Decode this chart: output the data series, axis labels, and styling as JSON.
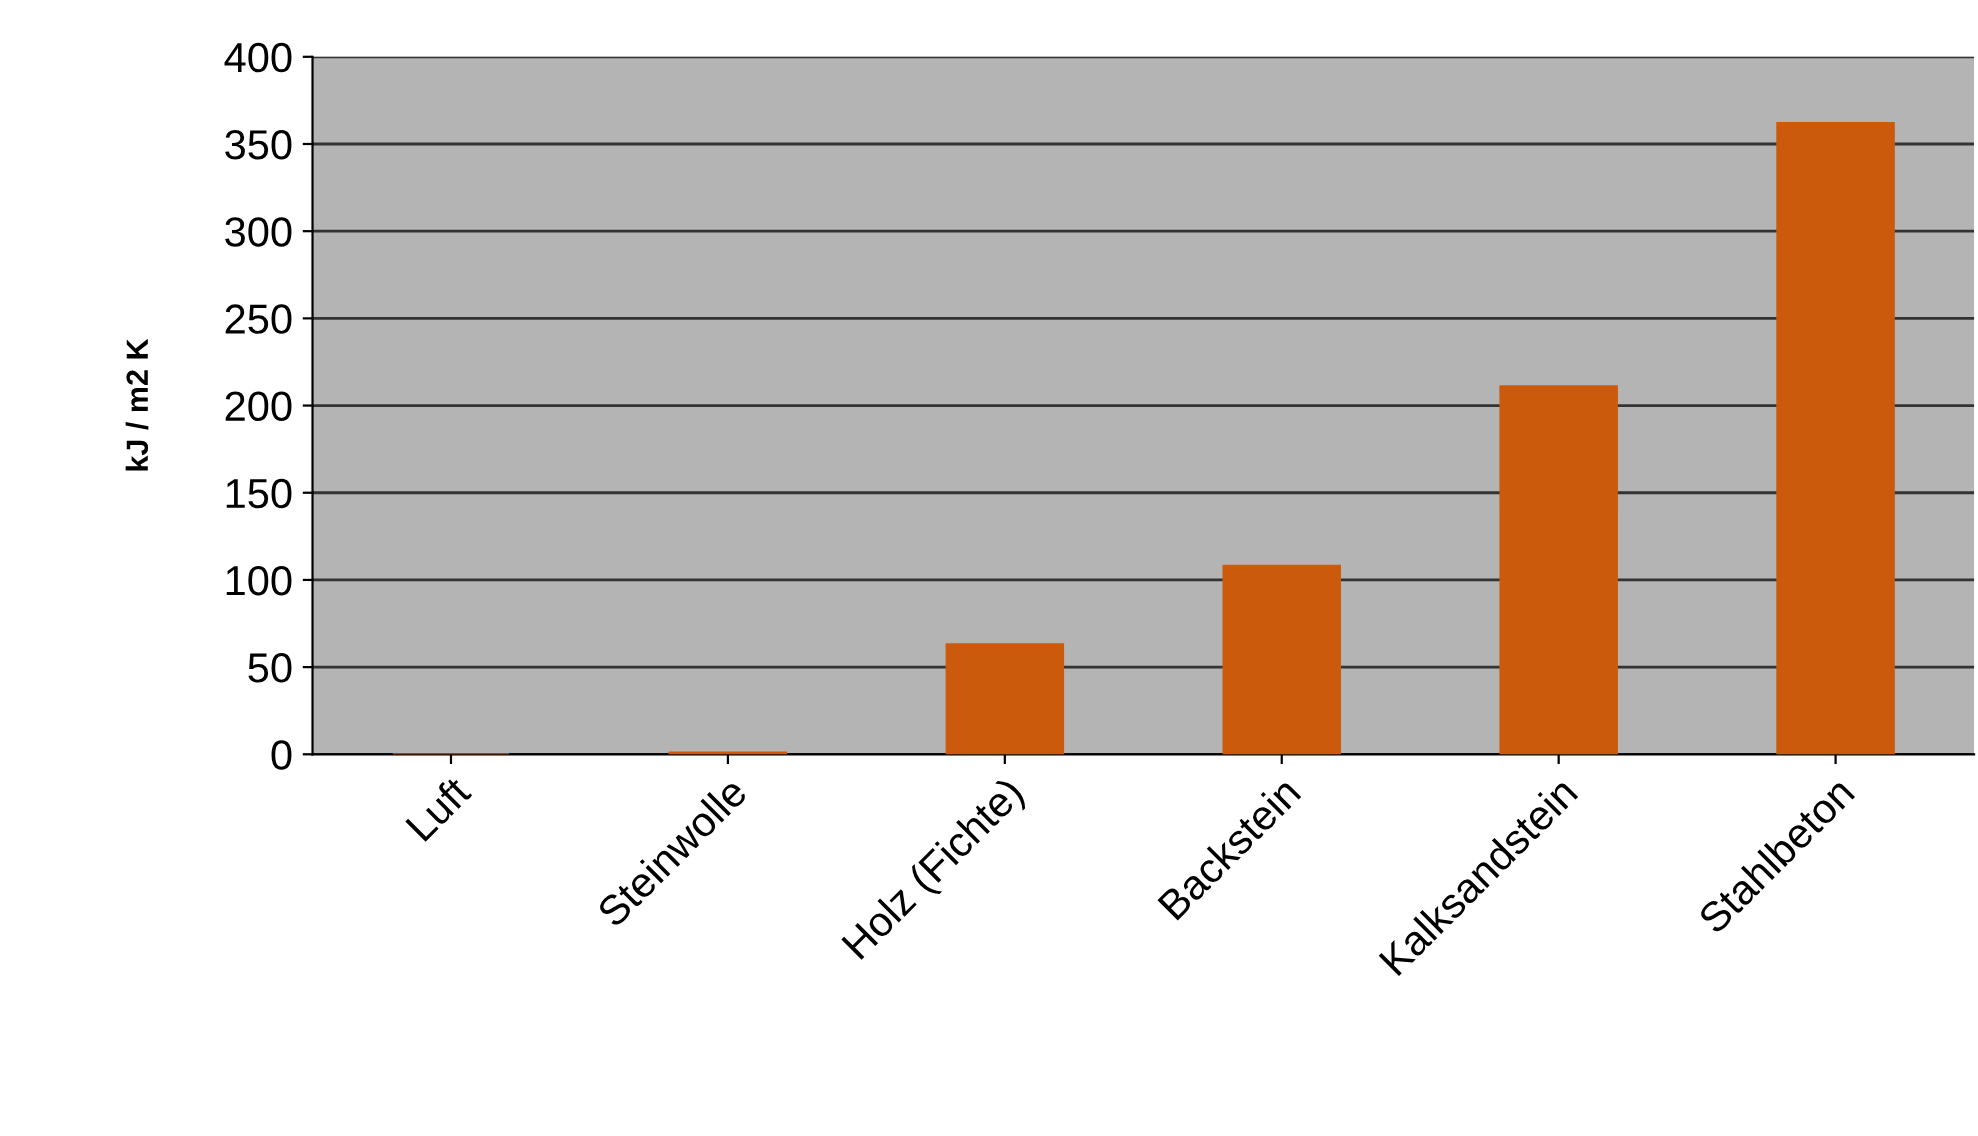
{
  "chart_data": {
    "type": "bar",
    "ylabel": "kJ / m2 K",
    "categories": [
      "Luft",
      "Steinwolle",
      "Holz (Fichte)",
      "Backstein",
      "Kalksandstein",
      "Stahlbeton"
    ],
    "values": [
      0,
      1,
      63,
      108,
      211,
      362
    ],
    "color": "#cc5a0c",
    "ylim": [
      0,
      400
    ],
    "yticks": [
      0,
      50,
      100,
      150,
      200,
      250,
      300,
      350,
      400
    ],
    "grid": "y"
  }
}
